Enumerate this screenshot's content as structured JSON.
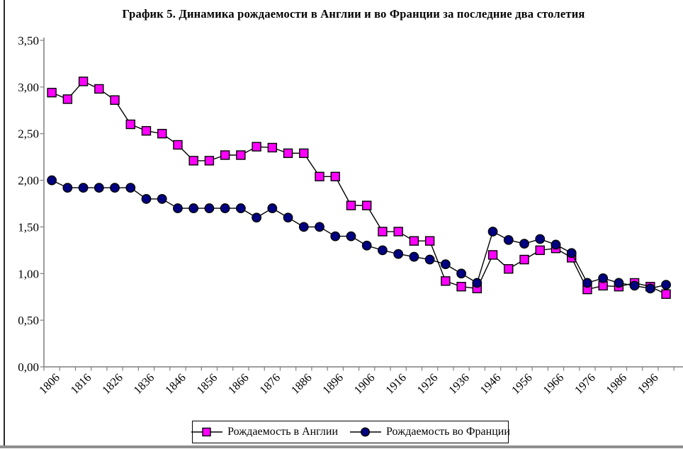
{
  "chart_data": {
    "type": "line",
    "title": "График 5. Динамика рождаемости в Англии и во Франции за последние два столетия",
    "x": [
      1806,
      1811,
      1816,
      1821,
      1826,
      1831,
      1836,
      1841,
      1846,
      1851,
      1856,
      1861,
      1866,
      1871,
      1876,
      1881,
      1886,
      1891,
      1896,
      1901,
      1906,
      1911,
      1916,
      1921,
      1926,
      1931,
      1936,
      1941,
      1946,
      1951,
      1956,
      1961,
      1966,
      1971,
      1976,
      1981,
      1986,
      1991,
      1996,
      2001
    ],
    "x_tick_labels": [
      "1806",
      "1816",
      "1826",
      "1836",
      "1846",
      "1856",
      "1866",
      "1876",
      "1886",
      "1896",
      "1906",
      "1916",
      "1926",
      "1936",
      "1946",
      "1956",
      "1966",
      "1976",
      "1986",
      "1996"
    ],
    "y_tick_labels": [
      "0,00",
      "0,50",
      "1,00",
      "1,50",
      "2,00",
      "2,50",
      "3,00",
      "3,50"
    ],
    "ylim": [
      0,
      3.5
    ],
    "y_tick_step": 0.5,
    "decimal_separator": ",",
    "grid": false,
    "legend_position": "bottom",
    "axis_color": "#7f7f7f",
    "line_color": "#000000",
    "series": [
      {
        "name": "Рождаемость в Англии",
        "marker": "square",
        "marker_color": "#FF00FF",
        "values": [
          2.94,
          2.87,
          3.06,
          2.98,
          2.86,
          2.6,
          2.53,
          2.5,
          2.38,
          2.21,
          2.21,
          2.27,
          2.27,
          2.36,
          2.35,
          2.29,
          2.29,
          2.04,
          2.04,
          1.73,
          1.73,
          1.45,
          1.45,
          1.35,
          1.35,
          0.92,
          0.86,
          0.84,
          1.2,
          1.05,
          1.15,
          1.25,
          1.27,
          1.17,
          0.83,
          0.87,
          0.86,
          0.9,
          0.86,
          0.78
        ]
      },
      {
        "name": "Рождаемость во Франции",
        "marker": "circle",
        "marker_color": "#000080",
        "values": [
          2.0,
          1.92,
          1.92,
          1.92,
          1.92,
          1.92,
          1.8,
          1.8,
          1.7,
          1.7,
          1.7,
          1.7,
          1.7,
          1.6,
          1.7,
          1.6,
          1.5,
          1.5,
          1.4,
          1.4,
          1.3,
          1.25,
          1.21,
          1.18,
          1.15,
          1.1,
          1.0,
          0.9,
          1.45,
          1.36,
          1.32,
          1.37,
          1.31,
          1.22,
          0.9,
          0.95,
          0.9,
          0.87,
          0.84,
          0.88
        ]
      }
    ]
  }
}
